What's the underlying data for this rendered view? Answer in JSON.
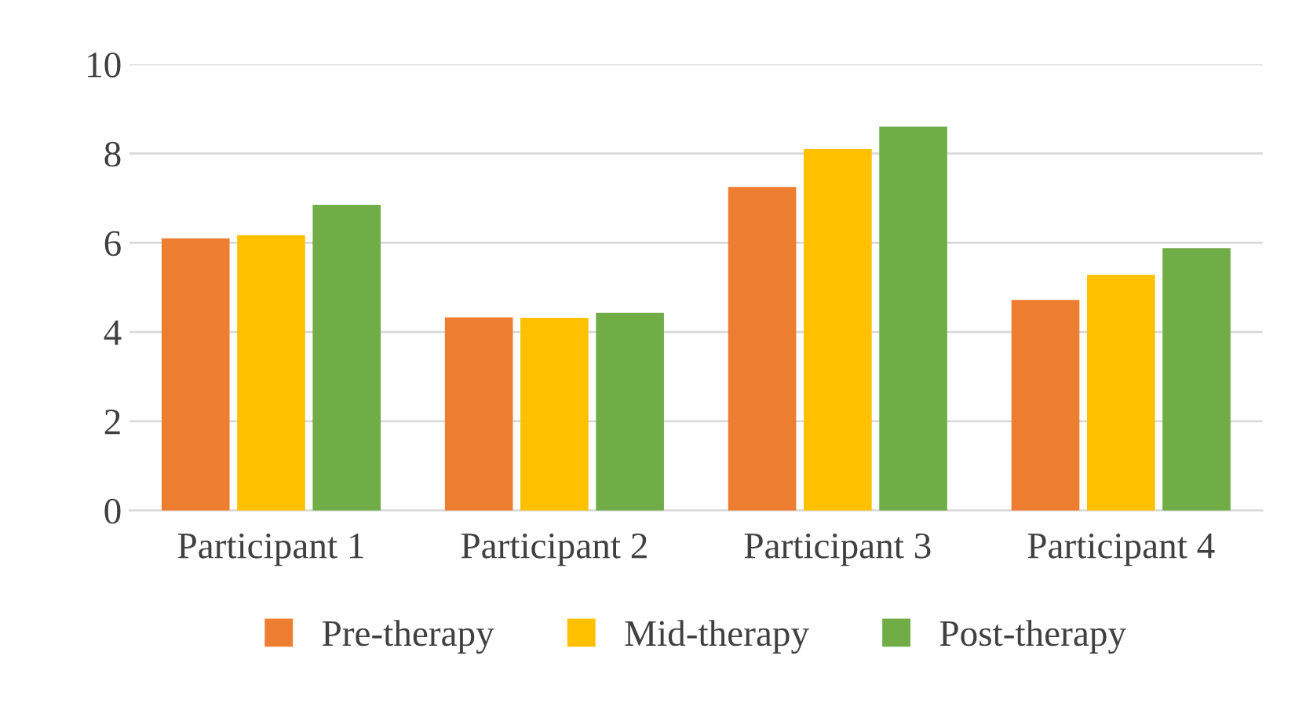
{
  "chart_data": {
    "type": "bar",
    "categories": [
      "Participant 1",
      "Participant 2",
      "Participant 3",
      "Participant 4"
    ],
    "series": [
      {
        "name": "Pre-therapy",
        "color": "#ed7d31",
        "values": [
          6.1,
          4.33,
          7.25,
          4.72
        ]
      },
      {
        "name": "Mid-therapy",
        "color": "#ffc000",
        "values": [
          6.17,
          4.32,
          8.1,
          5.28
        ]
      },
      {
        "name": "Post-therapy",
        "color": "#70ad47",
        "values": [
          6.85,
          4.43,
          8.6,
          5.88
        ]
      }
    ],
    "ylim": [
      0,
      10
    ],
    "yticks": [
      0,
      2,
      4,
      6,
      8,
      10
    ],
    "grid": "y",
    "legend": "bottom"
  }
}
